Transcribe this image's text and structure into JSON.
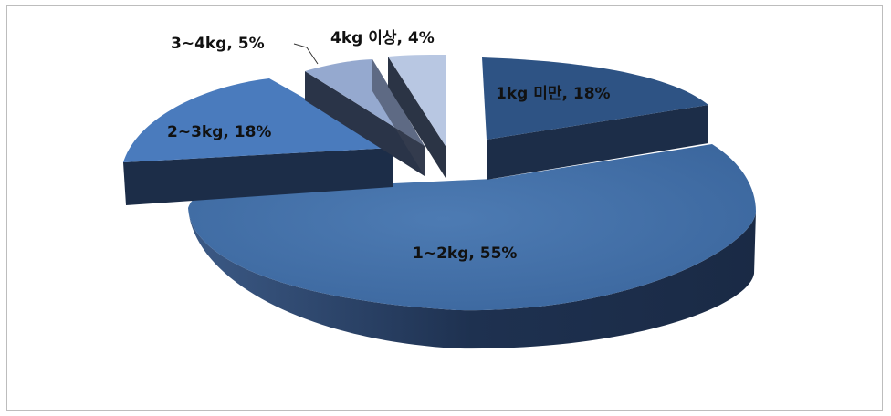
{
  "chart_data": {
    "type": "pie",
    "style": "3d-exploded",
    "title": "",
    "slices": [
      {
        "label": "1kg 미만, 18%",
        "category": "1kg 미만",
        "value": 18
      },
      {
        "label": "1~2kg, 55%",
        "category": "1~2kg",
        "value": 55
      },
      {
        "label": "2~3kg, 18%",
        "category": "2~3kg",
        "value": 18
      },
      {
        "label": "3~4kg, 5%",
        "category": "3~4kg",
        "value": 5
      },
      {
        "label": "4kg 이상, 4%",
        "category": "4kg 이상",
        "value": 4
      }
    ],
    "colors": {
      "slice_1kg_under": "#2e5384",
      "slice_1_2kg": "#4472a8",
      "slice_2_3kg": "#4a7bbd",
      "slice_3_4kg": "#95a9cf",
      "slice_4kg_over": "#b8c7e2",
      "side_dark": "#1c2d48"
    }
  }
}
